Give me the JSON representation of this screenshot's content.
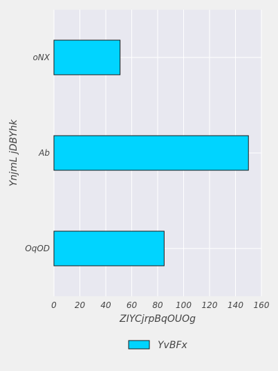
{
  "chart_data": {
    "type": "bar",
    "orientation": "horizontal",
    "categories": [
      "oNX",
      "Ab",
      "OqOD"
    ],
    "series": [
      {
        "name": "YvBFx",
        "values": [
          51,
          150,
          85
        ],
        "color": "#00d4ff"
      }
    ],
    "xlabel": "ZIYCjrpBqOUOg",
    "ylabel": "YnjmL jDBYhk",
    "xlim": [
      0,
      160
    ],
    "xticks": [
      0,
      20,
      40,
      60,
      80,
      100,
      120,
      140,
      160
    ],
    "grid": true,
    "legend_position": "bottom-center",
    "colors": {
      "plot_background": "#e8e8f0",
      "page_background": "#f0f0f0",
      "grid": "#ffffff",
      "bar_edge": "#1a1a1a"
    }
  }
}
